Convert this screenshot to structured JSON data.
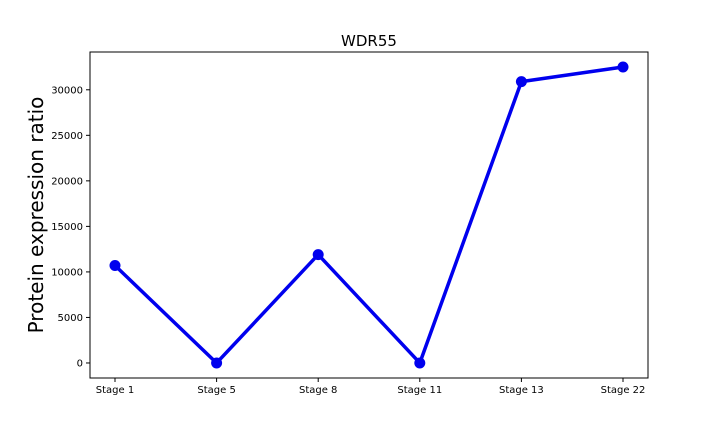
{
  "chart_data": {
    "type": "line",
    "title": "WDR55",
    "xlabel": "",
    "ylabel": "Protein expression ratio",
    "categories": [
      "Stage 1",
      "Stage 5",
      "Stage 8",
      "Stage 11",
      "Stage 13",
      "Stage 22"
    ],
    "series": [
      {
        "values": [
          10700,
          0,
          11900,
          0,
          30900,
          32500
        ]
      }
    ],
    "ylim": [
      -1650,
      34150
    ],
    "yticks": [
      0,
      5000,
      10000,
      15000,
      20000,
      25000,
      30000
    ],
    "grid": false,
    "line_color": "#0000ee",
    "marker": "circle"
  }
}
